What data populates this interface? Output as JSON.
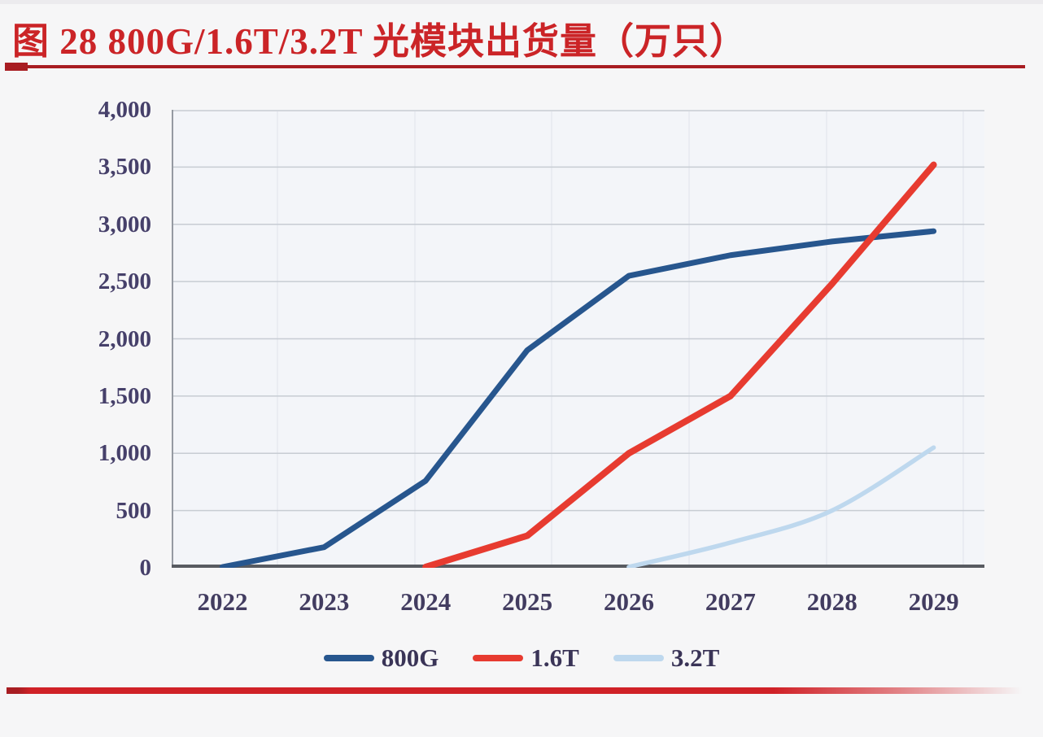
{
  "title": {
    "text": "图 28 800G/1.6T/3.2T 光模块出货量（万只）"
  },
  "chart_data": {
    "type": "line",
    "title": "图 28 800G/1.6T/3.2T 光模块出货量（万只）",
    "categories": [
      "2022",
      "2023",
      "2024",
      "2025",
      "2026",
      "2027",
      "2028",
      "2029"
    ],
    "series": [
      {
        "name": "800G",
        "color": "#27568e",
        "stroke_width": 7,
        "smooth": false,
        "values": [
          0,
          180,
          760,
          1900,
          2550,
          2730,
          2850,
          2940
        ]
      },
      {
        "name": "1.6T",
        "color": "#e73b30",
        "stroke_width": 8,
        "smooth": false,
        "values": [
          null,
          null,
          0,
          280,
          1000,
          1500,
          2480,
          3520
        ]
      },
      {
        "name": "3.2T",
        "color": "#bed8ee",
        "stroke_width": 5.5,
        "smooth": true,
        "values": [
          null,
          null,
          null,
          null,
          0,
          220,
          500,
          1050
        ]
      }
    ],
    "ylim": [
      0,
      4000
    ],
    "ytick_step": 500,
    "yticks_top_down": [
      "4,000",
      "3,500",
      "3,000",
      "2,500",
      "2,000",
      "1,500",
      "1,000",
      "500",
      "0"
    ],
    "xlabel": "",
    "ylabel": "",
    "legend_position": "bottom",
    "grid": "horizontal"
  },
  "colors": {
    "title_red": "#cb2427",
    "underline_red": "#a81d22",
    "bottom_rule_red": "#d02127",
    "axis_text": "#46406a",
    "gridline": "#c7ccd3",
    "faint_vertical_grid": "#e3e7ed",
    "axis_line": "#585b61",
    "left_border": "#959aa2",
    "plot_background": "#f3f5f9",
    "page_background": "#f6f6f7"
  }
}
